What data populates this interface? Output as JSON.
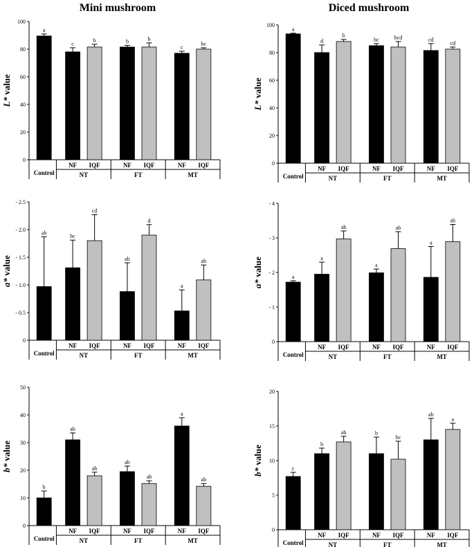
{
  "titles": {
    "left": "Mini mushroom",
    "right": "Diced mushroom"
  },
  "colors": {
    "nf": "#000000",
    "iqf": "#c0c0c0",
    "axis": "#000000"
  },
  "group_labels": [
    "NT",
    "FT",
    "MT"
  ],
  "chart_data": [
    {
      "type": "bar",
      "panel": "mini-L",
      "column": "left",
      "ylabel": "L* value",
      "ylabel_italic_part": "L*",
      "ylabel_rest": " value",
      "ylim": [
        0,
        100
      ],
      "yticks": [
        0,
        20,
        40,
        60,
        80,
        100
      ],
      "ytick_labels": [
        "0",
        "20",
        "40",
        "60",
        "80",
        "100"
      ],
      "categories": [
        "Control",
        "NF",
        "IQF",
        "NF",
        "IQF",
        "NF",
        "IQF"
      ],
      "groups": [
        "",
        "NT",
        "NT",
        "FT",
        "FT",
        "MT",
        "MT"
      ],
      "values": [
        89.5,
        78,
        81.5,
        81.5,
        81.5,
        77,
        80
      ],
      "errors": [
        1.5,
        3,
        2,
        1.2,
        3,
        1.5,
        1
      ],
      "letters": [
        "a",
        "c",
        "b",
        "b",
        "b",
        "c",
        "bc"
      ],
      "fills": [
        "nf",
        "nf",
        "iqf",
        "nf",
        "iqf",
        "nf",
        "iqf"
      ]
    },
    {
      "type": "bar",
      "panel": "diced-L",
      "column": "right",
      "ylabel": "L* value",
      "ylabel_italic_part": "L*",
      "ylabel_rest": " value",
      "ylim": [
        0,
        100
      ],
      "yticks": [
        0,
        20,
        40,
        60,
        80,
        100
      ],
      "ytick_labels": [
        "0",
        "20",
        "40",
        "60",
        "80",
        "100"
      ],
      "categories": [
        "Control",
        "NF",
        "IQF",
        "NF",
        "IQF",
        "NF",
        "IQF"
      ],
      "groups": [
        "",
        "NT",
        "NT",
        "FT",
        "FT",
        "MT",
        "MT"
      ],
      "values": [
        93.5,
        80,
        88,
        85,
        84,
        81.5,
        82.5
      ],
      "errors": [
        0.5,
        5.5,
        1.5,
        1.5,
        4,
        5,
        1.5
      ],
      "letters": [
        "a",
        "d",
        "b",
        "bc",
        "bcd",
        "cd",
        "cd"
      ],
      "fills": [
        "nf",
        "nf",
        "iqf",
        "nf",
        "iqf",
        "nf",
        "iqf"
      ]
    },
    {
      "type": "bar",
      "panel": "mini-a",
      "column": "left",
      "ylabel": "a* value",
      "ylabel_italic_part": "a*",
      "ylabel_rest": " value",
      "ylim": [
        0,
        2.5
      ],
      "yticks": [
        0,
        0.5,
        1.0,
        1.5,
        2.0,
        2.5
      ],
      "ytick_labels": [
        "0",
        "- 0.5",
        "- 1.0",
        "- 1.5",
        "- 2.0",
        "- 2.5"
      ],
      "categories": [
        "Control",
        "NF",
        "IQF",
        "NF",
        "IQF",
        "NF",
        "IQF"
      ],
      "groups": [
        "",
        "NT",
        "NT",
        "FT",
        "FT",
        "MT",
        "MT"
      ],
      "values": [
        0.97,
        1.31,
        1.8,
        0.88,
        1.9,
        0.53,
        1.09
      ],
      "errors": [
        0.9,
        0.5,
        0.47,
        0.52,
        0.19,
        0.38,
        0.27
      ],
      "letters": [
        "ab",
        "bc",
        "cd",
        "ab",
        "d",
        "a",
        "ab"
      ],
      "fills": [
        "nf",
        "nf",
        "iqf",
        "nf",
        "iqf",
        "nf",
        "iqf"
      ]
    },
    {
      "type": "bar",
      "panel": "diced-a",
      "column": "right",
      "ylabel": "a* value",
      "ylabel_italic_part": "a*",
      "ylabel_rest": " value",
      "ylim": [
        0,
        4
      ],
      "yticks": [
        0,
        1,
        2,
        3,
        4
      ],
      "ytick_labels": [
        "0",
        "- 1",
        "- 2",
        "- 3",
        "- 4"
      ],
      "categories": [
        "Control",
        "NF",
        "IQF",
        "NF",
        "IQF",
        "NF",
        "IQF"
      ],
      "groups": [
        "",
        "NT",
        "NT",
        "FT",
        "FT",
        "MT",
        "MT"
      ],
      "values": [
        1.72,
        1.95,
        2.97,
        1.99,
        2.69,
        1.86,
        2.89
      ],
      "errors": [
        0.04,
        0.35,
        0.23,
        0.11,
        0.49,
        0.89,
        0.5
      ],
      "letters": [
        "a",
        "a",
        "ab",
        "a",
        "ab",
        "a",
        "ab"
      ],
      "fills": [
        "nf",
        "nf",
        "iqf",
        "nf",
        "iqf",
        "nf",
        "iqf"
      ]
    },
    {
      "type": "bar",
      "panel": "mini-b",
      "column": "left",
      "ylabel": "b* value",
      "ylabel_italic_part": "b*",
      "ylabel_rest": " value",
      "ylim": [
        0,
        50
      ],
      "yticks": [
        0,
        10,
        20,
        30,
        40,
        50
      ],
      "ytick_labels": [
        "0",
        "10",
        "20",
        "30",
        "40",
        "50"
      ],
      "categories": [
        "Control",
        "NF",
        "IQF",
        "NF",
        "IQF",
        "NF",
        "IQF"
      ],
      "groups": [
        "",
        "NT",
        "NT",
        "FT",
        "FT",
        "MT",
        "MT"
      ],
      "values": [
        10,
        31,
        18,
        19.5,
        15.2,
        36,
        14.2
      ],
      "errors": [
        2.5,
        2.5,
        1.3,
        2,
        1,
        3,
        1
      ],
      "letters": [
        "b",
        "ab",
        "ab",
        "ab",
        "ab",
        "a",
        "ab"
      ],
      "fills": [
        "nf",
        "nf",
        "iqf",
        "nf",
        "iqf",
        "nf",
        "iqf"
      ]
    },
    {
      "type": "bar",
      "panel": "diced-b",
      "column": "right",
      "ylabel": "b* value",
      "ylabel_italic_part": "b*",
      "ylabel_rest": " value",
      "ylim": [
        0,
        20
      ],
      "yticks": [
        0,
        5,
        10,
        15,
        20
      ],
      "ytick_labels": [
        "0",
        "5",
        "10",
        "15",
        "20"
      ],
      "categories": [
        "Control",
        "NF",
        "IQF",
        "NF",
        "IQF",
        "NF",
        "IQF"
      ],
      "groups": [
        "",
        "NT",
        "NT",
        "FT",
        "FT",
        "MT",
        "MT"
      ],
      "values": [
        7.7,
        11,
        12.7,
        11,
        10.2,
        13,
        14.5
      ],
      "errors": [
        0.6,
        0.8,
        0.8,
        2.4,
        2.6,
        3.1,
        0.9
      ],
      "letters": [
        "c",
        "b",
        "ab",
        "b",
        "bc",
        "ab",
        "a"
      ],
      "fills": [
        "nf",
        "nf",
        "iqf",
        "nf",
        "iqf",
        "nf",
        "iqf"
      ]
    }
  ]
}
